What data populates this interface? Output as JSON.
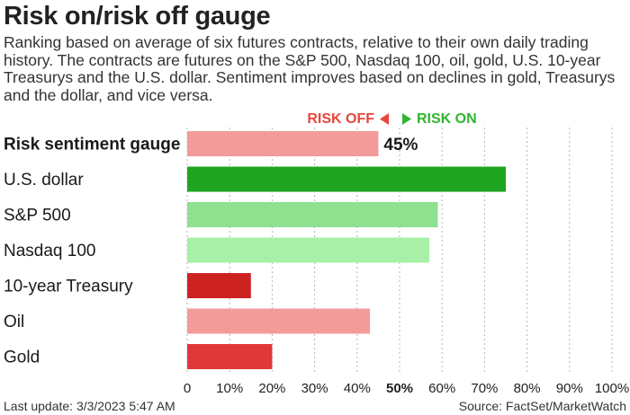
{
  "header": {
    "title": "Risk on/risk off gauge",
    "subtitle": "Ranking based on average of six futures contracts, relative to their own daily trading history. The contracts are futures on the S&P 500, Nasdaq 100, oil, gold, U.S. 10-year Treasurys and the U.S. dollar. Sentiment improves based on declines in gold, Treasurys and the dollar, and vice versa."
  },
  "legend": {
    "risk_off": "RISK OFF",
    "risk_on": "RISK ON",
    "risk_off_color": "#e8463c",
    "risk_on_color": "#2fb52f"
  },
  "footer": {
    "last_update": "Last update: 3/3/2023 5:47 AM",
    "source": "Source: FactSet/MarketWatch"
  },
  "chart_data": {
    "type": "bar",
    "orientation": "horizontal",
    "categories": [
      "Risk sentiment gauge",
      "U.S. dollar",
      "S&P 500",
      "Nasdaq 100",
      "10-year Treasury",
      "Oil",
      "Gold"
    ],
    "values": [
      45,
      75,
      59,
      57,
      15,
      43,
      20
    ],
    "colors": [
      "#f29b98",
      "#1fa51f",
      "#8fe08f",
      "#a8f0a8",
      "#cc2222",
      "#f29b98",
      "#e0383a"
    ],
    "value_labels": [
      "45%",
      "",
      "",
      "",
      "",
      "",
      ""
    ],
    "xlim": [
      0,
      100
    ],
    "x_ticks": [
      "0",
      "10%",
      "20%",
      "30%",
      "40%",
      "50%",
      "60%",
      "70%",
      "80%",
      "90%",
      "100%"
    ],
    "x_tick_values": [
      0,
      10,
      20,
      30,
      40,
      50,
      60,
      70,
      80,
      90,
      100
    ],
    "bold_tick": "50%",
    "bold_category": "Risk sentiment gauge",
    "grid": true
  }
}
